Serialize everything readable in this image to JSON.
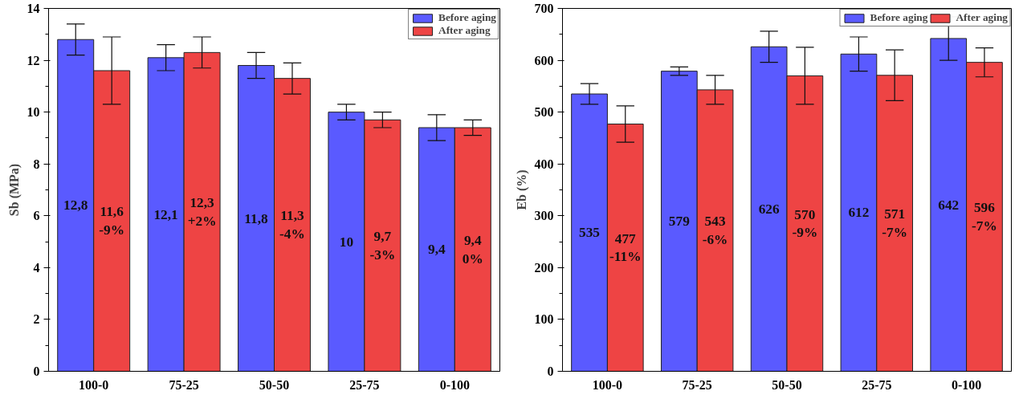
{
  "chart_data": [
    {
      "type": "bar",
      "ylabel": "Sb (MPa)",
      "categories": [
        "100-0",
        "75-25",
        "50-50",
        "25-75",
        "0-100"
      ],
      "ylim": [
        0,
        14
      ],
      "yticks": [
        0,
        2,
        4,
        6,
        8,
        10,
        12,
        14
      ],
      "legend": "top right",
      "series": [
        {
          "name": "Before aging",
          "color": "#5a5aff",
          "values": [
            12.8,
            12.1,
            11.8,
            10,
            9.4
          ],
          "errors": [
            0.6,
            0.5,
            0.5,
            0.3,
            0.5
          ],
          "value_labels": [
            "12,8",
            "12,1",
            "11,8",
            "10",
            "9,4"
          ]
        },
        {
          "name": "After aging",
          "color": "#ee4444",
          "values": [
            11.6,
            12.3,
            11.3,
            9.7,
            9.4
          ],
          "errors": [
            1.3,
            0.6,
            0.6,
            0.3,
            0.3
          ],
          "value_labels": [
            "11,6\n-9%",
            "12,3\n+2%",
            "11,3\n-4%",
            "9,7\n-3%",
            "9,4\n0%"
          ]
        }
      ]
    },
    {
      "type": "bar",
      "ylabel": "Eb (%)",
      "categories": [
        "100-0",
        "75-25",
        "50-50",
        "25-75",
        "0-100"
      ],
      "ylim": [
        0,
        700
      ],
      "yticks": [
        0,
        100,
        200,
        300,
        400,
        500,
        600,
        700
      ],
      "legend": "top right",
      "series": [
        {
          "name": "Before aging",
          "color": "#5a5aff",
          "values": [
            535,
            579,
            626,
            612,
            642
          ],
          "errors": [
            20,
            8,
            30,
            33,
            42
          ],
          "value_labels": [
            "535",
            "579",
            "626",
            "612",
            "642"
          ]
        },
        {
          "name": "After aging",
          "color": "#ee4444",
          "values": [
            477,
            543,
            570,
            571,
            596
          ],
          "errors": [
            35,
            28,
            55,
            49,
            28
          ],
          "value_labels": [
            "477\n-11%",
            "543\n-6%",
            "570\n-9%",
            "571\n-7%",
            "596\n-7%"
          ]
        }
      ]
    }
  ]
}
